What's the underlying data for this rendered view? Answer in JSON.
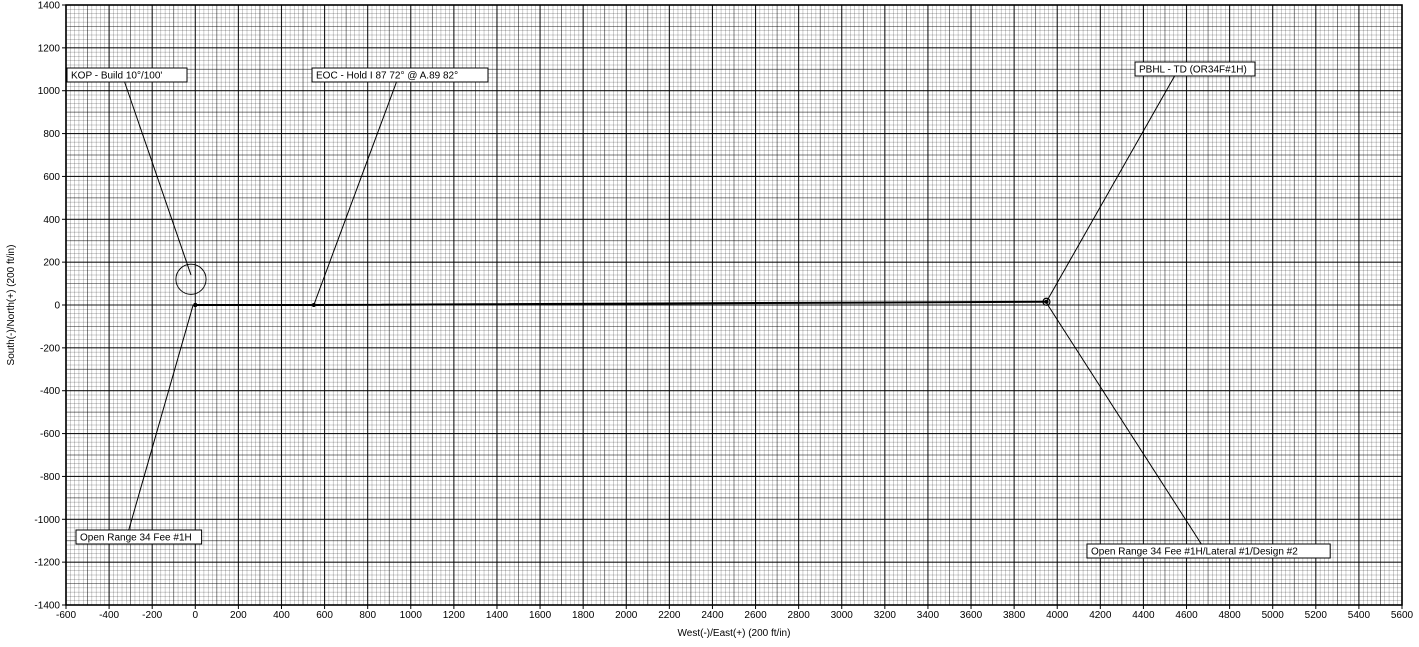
{
  "chart_data": {
    "type": "line",
    "xlabel": "West(-)/East(+) (200 ft/in)",
    "ylabel": "South(-)/North(+) (200 ft/in)",
    "xlim": [
      -600,
      5600
    ],
    "ylim": [
      -1400,
      1400
    ],
    "grid": true,
    "colors": {
      "background": "#ffffff",
      "line": "#000000",
      "grid": "#000000"
    },
    "x_ticks": [
      -600,
      -400,
      -200,
      0,
      200,
      400,
      600,
      800,
      1000,
      1200,
      1400,
      1600,
      1800,
      2000,
      2200,
      2400,
      2600,
      2800,
      3000,
      3200,
      3400,
      3600,
      3800,
      4000,
      4200,
      4400,
      4600,
      4800,
      5000,
      5200,
      5400,
      5600
    ],
    "x_tick_labels": [
      "-600",
      "-400",
      "-200",
      "0",
      "200",
      "400",
      "600",
      "800",
      "1000",
      "1200",
      "1400",
      "1600",
      "1800",
      "2000",
      "2200",
      "2400",
      "2600",
      "2800",
      "3000",
      "3200",
      "3400",
      "3600",
      "3800",
      "4000",
      "4200",
      "4400",
      "4600",
      "4800",
      "5000",
      "5200",
      "5400",
      "5600"
    ],
    "y_ticks": [
      1400,
      1200,
      1000,
      800,
      600,
      400,
      200,
      0,
      -200,
      -400,
      -600,
      -800,
      -1000,
      -1200,
      -1400
    ],
    "y_tick_labels": [
      "1400",
      "1200",
      "1000",
      "800",
      "600",
      "400",
      "200",
      "0",
      "-200",
      "-400",
      "-600",
      "-800",
      "-1000",
      "-1200",
      "-1400"
    ],
    "series": [
      {
        "x": [
          0,
          0,
          550,
          3950
        ],
        "y": [
          0,
          0,
          0,
          15
        ]
      }
    ],
    "target_circle": {
      "x": -20,
      "y": 120,
      "radius": 70
    },
    "annotations": [
      {
        "text": "KOP - Build 10°/100'",
        "anchor_x": -20,
        "anchor_y": 140,
        "label_at": "top-left"
      },
      {
        "text": "EOC - Hold I 87 72° @ A.89 82°",
        "anchor_x": 550,
        "anchor_y": 0,
        "label_at": "top-center"
      },
      {
        "text": "PBHL - TD (OR34F#1H)",
        "anchor_x": 3950,
        "anchor_y": 15,
        "label_at": "top-right"
      },
      {
        "text": "Open Range 34 Fee #1H",
        "anchor_x": -10,
        "anchor_y": 0,
        "label_at": "bottom-left"
      },
      {
        "text": "Open Range 34 Fee #1H/Lateral #1/Design #2",
        "anchor_x": 3950,
        "anchor_y": 10,
        "label_at": "bottom-right"
      }
    ]
  }
}
